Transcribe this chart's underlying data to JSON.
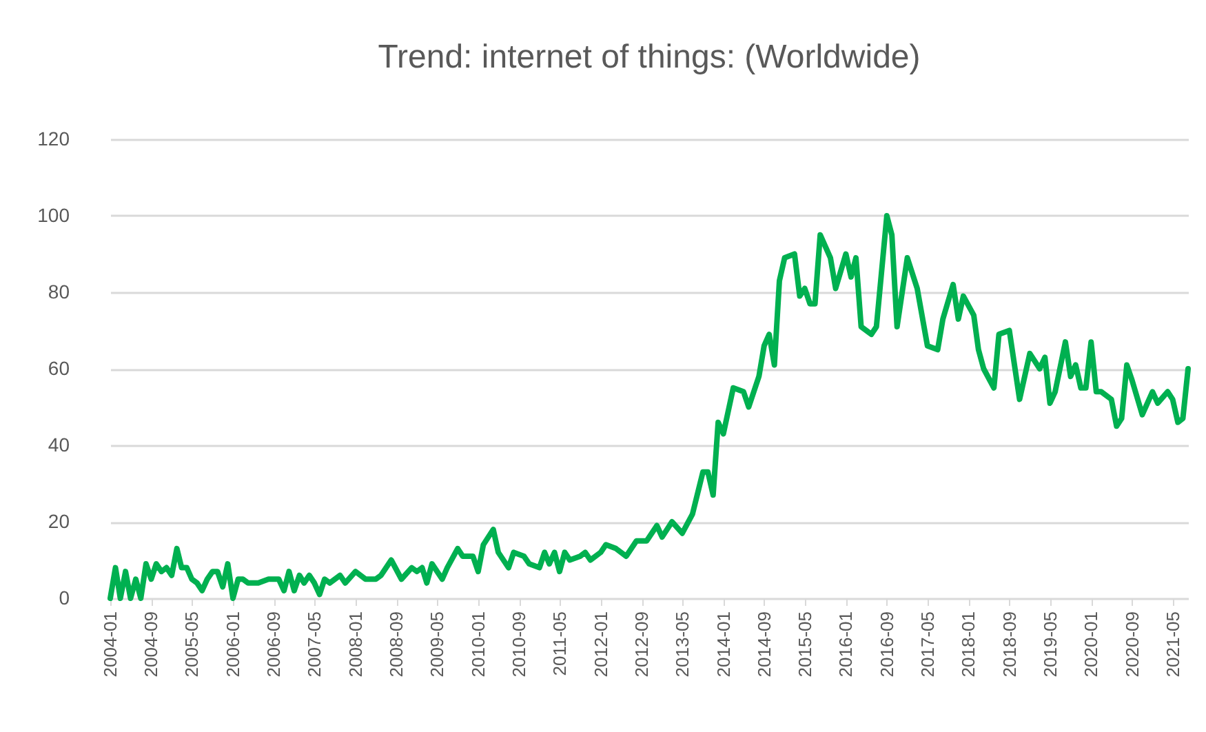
{
  "chart_data": {
    "type": "line",
    "title": "Trend: internet of things: (Worldwide)",
    "x": [
      "2004-01",
      "2004-02",
      "2004-03",
      "2004-04",
      "2004-05",
      "2004-06",
      "2004-07",
      "2004-08",
      "2004-09",
      "2004-10",
      "2004-11",
      "2004-12",
      "2005-01",
      "2005-02",
      "2005-03",
      "2005-04",
      "2005-05",
      "2005-06",
      "2005-07",
      "2005-08",
      "2005-09",
      "2005-10",
      "2005-11",
      "2005-12",
      "2006-01",
      "2006-02",
      "2006-03",
      "2006-04",
      "2006-05",
      "2006-06",
      "2006-08",
      "2006-10",
      "2006-11",
      "2006-12",
      "2007-01",
      "2007-02",
      "2007-03",
      "2007-04",
      "2007-05",
      "2007-06",
      "2007-07",
      "2007-08",
      "2007-10",
      "2007-11",
      "2008-01",
      "2008-03",
      "2008-05",
      "2008-06",
      "2008-08",
      "2008-10",
      "2008-12",
      "2009-01",
      "2009-02",
      "2009-03",
      "2009-04",
      "2009-06",
      "2009-07",
      "2009-09",
      "2009-10",
      "2009-12",
      "2010-01",
      "2010-02",
      "2010-04",
      "2010-05",
      "2010-07",
      "2010-08",
      "2010-10",
      "2010-11",
      "2011-01",
      "2011-02",
      "2011-03",
      "2011-04",
      "2011-05",
      "2011-06",
      "2011-07",
      "2011-09",
      "2011-10",
      "2011-11",
      "2012-01",
      "2012-02",
      "2012-04",
      "2012-06",
      "2012-08",
      "2012-10",
      "2012-12",
      "2013-01",
      "2013-03",
      "2013-05",
      "2013-07",
      "2013-09",
      "2013-10",
      "2013-11",
      "2013-12",
      "2014-01",
      "2014-03",
      "2014-05",
      "2014-06",
      "2014-08",
      "2014-09",
      "2014-10",
      "2014-11",
      "2014-12",
      "2015-01",
      "2015-03",
      "2015-04",
      "2015-05",
      "2015-06",
      "2015-07",
      "2015-08",
      "2015-10",
      "2015-11",
      "2016-01",
      "2016-02",
      "2016-03",
      "2016-04",
      "2016-06",
      "2016-07",
      "2016-09",
      "2016-10",
      "2016-11",
      "2017-01",
      "2017-03",
      "2017-05",
      "2017-07",
      "2017-08",
      "2017-10",
      "2017-11",
      "2017-12",
      "2018-02",
      "2018-03",
      "2018-04",
      "2018-06",
      "2018-07",
      "2018-09",
      "2018-11",
      "2019-01",
      "2019-03",
      "2019-04",
      "2019-05",
      "2019-06",
      "2019-08",
      "2019-09",
      "2019-10",
      "2019-11",
      "2019-12",
      "2020-01",
      "2020-02",
      "2020-03",
      "2020-05",
      "2020-06",
      "2020-07",
      "2020-08",
      "2020-09",
      "2020-11",
      "2021-01",
      "2021-02",
      "2021-04",
      "2021-05",
      "2021-06",
      "2021-07",
      "2021-08"
    ],
    "series": [
      {
        "color": "#00b050",
        "values": [
          0,
          8,
          0,
          7,
          0,
          5,
          0,
          9,
          5,
          9,
          7,
          8,
          6,
          13,
          8,
          8,
          5,
          4,
          2,
          5,
          7,
          7,
          3,
          9,
          0,
          5,
          5,
          4,
          4,
          4,
          5,
          5,
          2,
          7,
          2,
          6,
          4,
          6,
          4,
          1,
          5,
          4,
          6,
          4,
          7,
          5,
          5,
          6,
          10,
          5,
          8,
          7,
          8,
          4,
          9,
          5,
          8,
          13,
          11,
          11,
          7,
          14,
          18,
          12,
          8,
          12,
          11,
          9,
          8,
          12,
          9,
          12,
          7,
          12,
          10,
          11,
          12,
          10,
          12,
          14,
          13,
          11,
          15,
          15,
          19,
          16,
          20,
          17,
          22,
          33,
          33,
          27,
          46,
          43,
          55,
          54,
          50,
          58,
          66,
          69,
          61,
          83,
          89,
          90,
          79,
          81,
          77,
          77,
          95,
          89,
          81,
          90,
          84,
          89,
          71,
          69,
          71,
          100,
          95,
          71,
          89,
          81,
          66,
          65,
          73,
          82,
          73,
          79,
          74,
          65,
          60,
          55,
          69,
          70,
          52,
          64,
          60,
          63,
          51,
          54,
          67,
          58,
          61,
          55,
          55,
          67,
          54,
          54,
          52,
          45,
          47,
          61,
          57,
          48,
          54,
          51,
          54,
          52,
          46,
          47,
          60
        ]
      }
    ],
    "xlim": [
      "2004-01",
      "2021-08"
    ],
    "xticks": [
      "2004-01",
      "2004-09",
      "2005-05",
      "2006-01",
      "2006-09",
      "2007-05",
      "2008-01",
      "2008-09",
      "2009-05",
      "2010-01",
      "2010-09",
      "2011-05",
      "2012-01",
      "2012-09",
      "2013-05",
      "2014-01",
      "2014-09",
      "2015-05",
      "2016-01",
      "2016-09",
      "2017-05",
      "2018-01",
      "2018-09",
      "2019-05",
      "2020-01",
      "2020-09",
      "2021-05"
    ],
    "ylim": [
      0,
      120
    ],
    "yticks": [
      0,
      20,
      40,
      60,
      80,
      100,
      120
    ],
    "grid": "y"
  }
}
